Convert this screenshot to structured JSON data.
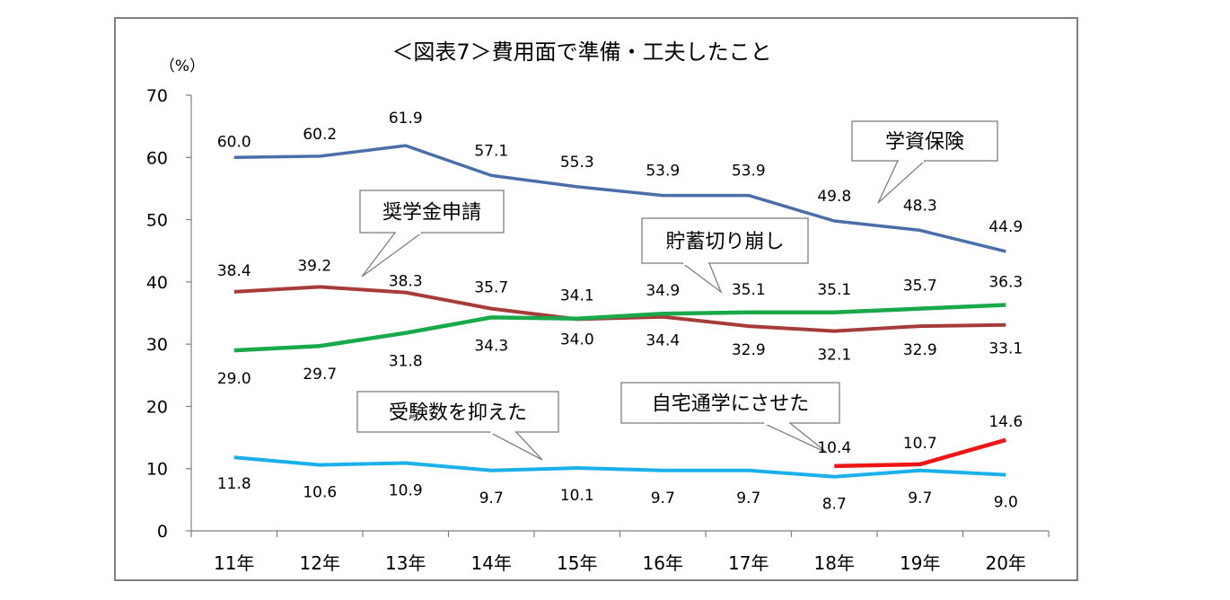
{
  "chart_data": {
    "type": "line",
    "title": "＜図表7＞費用面で準備・工夫したこと",
    "y_unit": "（%）",
    "ylim": [
      0,
      70
    ],
    "yticks": [
      0,
      10,
      20,
      30,
      40,
      50,
      60,
      70
    ],
    "categories": [
      "11年",
      "12年",
      "13年",
      "14年",
      "15年",
      "16年",
      "17年",
      "18年",
      "19年",
      "20年"
    ],
    "grid": false,
    "series": [
      {
        "name": "学資保険",
        "color": "#4a6ea9",
        "values": [
          60.0,
          60.2,
          61.9,
          57.1,
          55.3,
          53.9,
          53.9,
          49.8,
          48.3,
          44.9
        ],
        "labels": [
          "60.0",
          "60.2",
          "61.9",
          "57.1",
          "55.3",
          "53.9",
          "53.9",
          "49.8",
          "48.3",
          "44.9"
        ]
      },
      {
        "name": "奨学金申請",
        "color": "#a63c3a",
        "values": [
          38.4,
          39.2,
          38.3,
          35.7,
          34.0,
          34.4,
          32.9,
          32.1,
          32.9,
          33.1
        ],
        "labels": [
          "38.4",
          "39.2",
          "38.3",
          "35.7",
          "34.0",
          "34.4",
          "32.9",
          "32.1",
          "32.9",
          "33.1"
        ]
      },
      {
        "name": "貯蓄切り崩し",
        "color": "#19a84a",
        "values": [
          29.0,
          29.7,
          31.8,
          34.3,
          34.1,
          34.9,
          35.1,
          35.1,
          35.7,
          36.3
        ],
        "labels": [
          "29.0",
          "29.7",
          "31.8",
          "34.3",
          "34.1",
          "34.9",
          "35.1",
          "35.1",
          "35.7",
          "36.3"
        ]
      },
      {
        "name": "受験数を抑えた",
        "color": "#1ab0ea",
        "values": [
          11.8,
          10.6,
          10.9,
          9.7,
          10.1,
          9.7,
          9.7,
          8.7,
          9.7,
          9.0
        ],
        "labels": [
          "11.8",
          "10.6",
          "10.9",
          "9.7",
          "10.1",
          "9.7",
          "9.7",
          "8.7",
          "9.7",
          "9.0"
        ]
      },
      {
        "name": "自宅通学にさせた",
        "color": "#f01515",
        "values": [
          null,
          null,
          null,
          null,
          null,
          null,
          null,
          10.4,
          10.7,
          14.6
        ],
        "labels": [
          null,
          null,
          null,
          null,
          null,
          null,
          null,
          "10.4",
          "10.7",
          "14.6"
        ]
      }
    ]
  }
}
